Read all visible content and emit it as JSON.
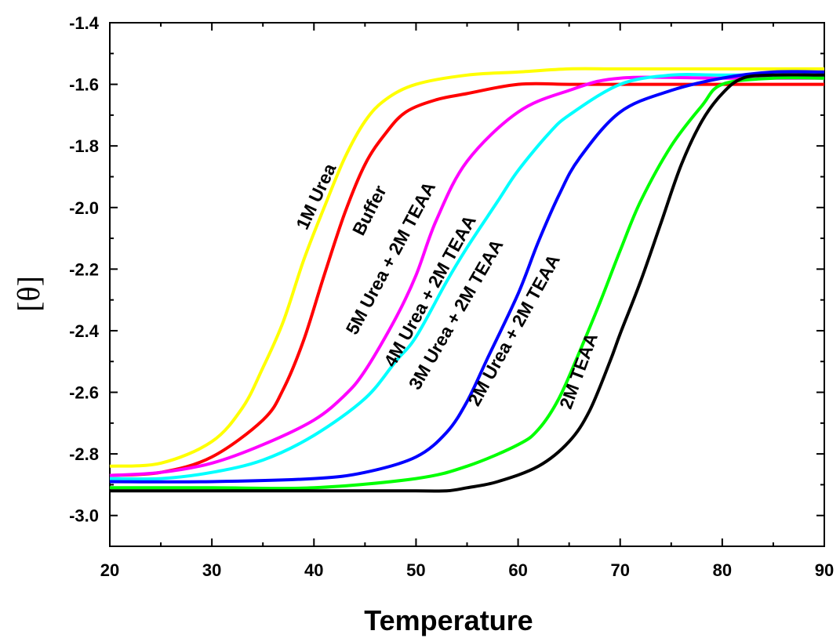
{
  "chart_data": {
    "type": "line",
    "title": "",
    "xlabel": "Temperature",
    "ylabel": "[θ]",
    "xlim": [
      20,
      90
    ],
    "ylim": [
      -3.1,
      -1.4
    ],
    "xticks": [
      "20",
      "30",
      "40",
      "50",
      "60",
      "70",
      "80",
      "90"
    ],
    "yticks": [
      "-1.4",
      "-1.6",
      "-1.8",
      "-2.0",
      "-2.2",
      "-2.4",
      "-2.6",
      "-2.8",
      "-3.0"
    ],
    "grid": false,
    "legend": "none (inline labels along curves)",
    "series": [
      {
        "name": "1M Urea",
        "color": "#ffff00",
        "x": [
          20,
          25,
          30,
          33,
          35,
          37,
          39,
          41,
          43,
          45,
          47,
          50,
          55,
          60,
          65,
          70,
          80,
          90
        ],
        "y": [
          -2.84,
          -2.83,
          -2.76,
          -2.65,
          -2.52,
          -2.37,
          -2.17,
          -2.0,
          -1.84,
          -1.72,
          -1.65,
          -1.6,
          -1.57,
          -1.56,
          -1.55,
          -1.55,
          -1.55,
          -1.55
        ]
      },
      {
        "name": "Buffer",
        "color": "#ff0000",
        "x": [
          20,
          25,
          30,
          35,
          37,
          39,
          41,
          43,
          45,
          47,
          49,
          52,
          55,
          60,
          65,
          70,
          80,
          90
        ],
        "y": [
          -2.87,
          -2.86,
          -2.81,
          -2.69,
          -2.59,
          -2.43,
          -2.22,
          -2.02,
          -1.86,
          -1.76,
          -1.69,
          -1.65,
          -1.63,
          -1.6,
          -1.6,
          -1.6,
          -1.6,
          -1.6
        ]
      },
      {
        "name": "5M Urea + 2M TEAA",
        "color": "#ff00ff",
        "x": [
          20,
          25,
          30,
          35,
          40,
          43,
          45,
          48,
          50,
          52,
          55,
          60,
          65,
          70,
          80,
          90
        ],
        "y": [
          -2.87,
          -2.86,
          -2.83,
          -2.77,
          -2.69,
          -2.61,
          -2.53,
          -2.36,
          -2.22,
          -2.04,
          -1.85,
          -1.69,
          -1.62,
          -1.58,
          -1.58,
          -1.58
        ]
      },
      {
        "name": "4M Urea + 2M TEAA",
        "color": "#00ffff",
        "x": [
          20,
          25,
          30,
          35,
          40,
          45,
          48,
          50,
          53,
          55,
          58,
          60,
          63,
          65,
          70,
          75,
          80,
          90
        ],
        "y": [
          -2.88,
          -2.88,
          -2.86,
          -2.82,
          -2.74,
          -2.62,
          -2.5,
          -2.42,
          -2.24,
          -2.13,
          -1.98,
          -1.88,
          -1.76,
          -1.7,
          -1.6,
          -1.57,
          -1.57,
          -1.57
        ]
      },
      {
        "name": "3M Urea + 2M TEAA",
        "color": "#0000ff",
        "x": [
          20,
          30,
          40,
          45,
          50,
          53,
          55,
          57,
          60,
          62,
          64,
          66,
          70,
          75,
          80,
          85,
          90
        ],
        "y": [
          -2.89,
          -2.89,
          -2.88,
          -2.86,
          -2.81,
          -2.73,
          -2.63,
          -2.49,
          -2.28,
          -2.11,
          -1.96,
          -1.84,
          -1.69,
          -1.62,
          -1.58,
          -1.56,
          -1.56
        ]
      },
      {
        "name": "2M Urea + 2M TEAA",
        "color": "#00ff00",
        "x": [
          20,
          30,
          40,
          50,
          55,
          60,
          62,
          64,
          66,
          68,
          70,
          72,
          75,
          78,
          80,
          85,
          90
        ],
        "y": [
          -2.91,
          -2.91,
          -2.91,
          -2.88,
          -2.84,
          -2.77,
          -2.72,
          -2.62,
          -2.47,
          -2.31,
          -2.14,
          -1.98,
          -1.8,
          -1.67,
          -1.6,
          -1.58,
          -1.58
        ]
      },
      {
        "name": "2M TEAA",
        "color": "#000000",
        "x": [
          20,
          30,
          40,
          50,
          53,
          55,
          58,
          62,
          65,
          67,
          69,
          70,
          72,
          74,
          76,
          78,
          80,
          82,
          85,
          90
        ],
        "y": [
          -2.92,
          -2.92,
          -2.92,
          -2.92,
          -2.92,
          -2.91,
          -2.89,
          -2.84,
          -2.76,
          -2.66,
          -2.5,
          -2.41,
          -2.24,
          -2.05,
          -1.86,
          -1.72,
          -1.63,
          -1.58,
          -1.57,
          -1.57
        ]
      }
    ]
  }
}
